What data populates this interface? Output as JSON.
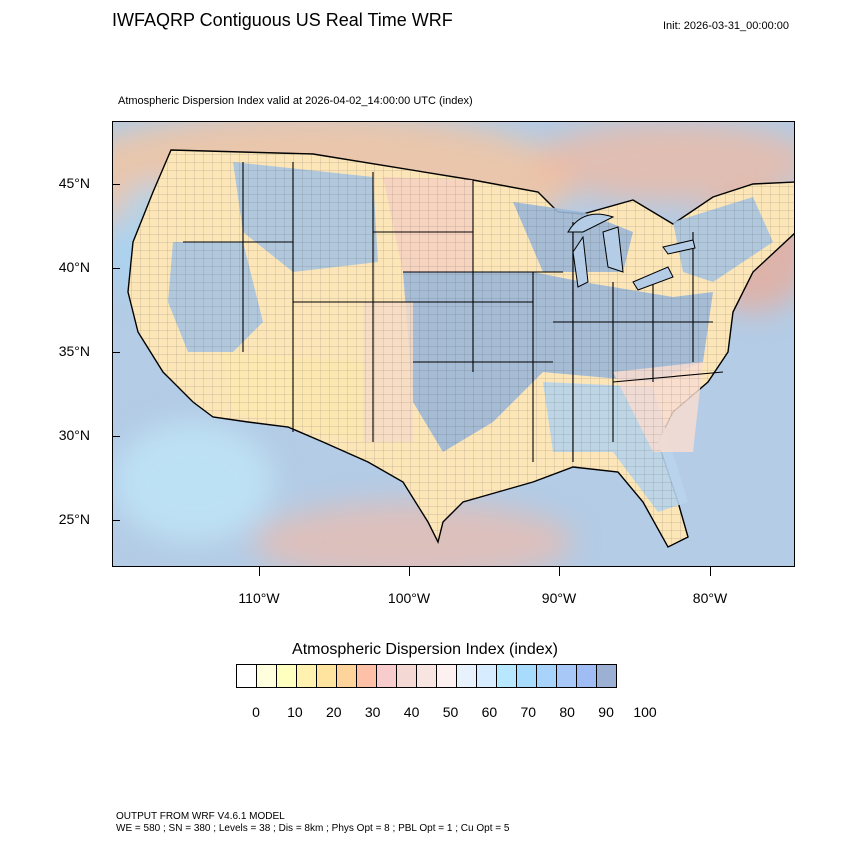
{
  "title": "IWFAQRP Contiguous US Real Time WRF",
  "init": "Init: 2026-03-31_00:00:00",
  "subtitle": "Atmospheric Dispersion Index valid at 2026-04-02_14:00:00 UTC   (index)",
  "map": {
    "lat_labels": [
      "45°N",
      "40°N",
      "35°N",
      "30°N",
      "25°N"
    ],
    "lon_labels": [
      "110°W",
      "100°W",
      "90°W",
      "80°W"
    ]
  },
  "legend": {
    "title": "Atmospheric Dispersion Index  (index)",
    "colors": [
      "#ffffff",
      "#ffffdd",
      "#ffffc0",
      "#fff2b0",
      "#ffe4a0",
      "#ffd49a",
      "#ffc0a8",
      "#f8cccc",
      "#f4d8d4",
      "#f8e4e0",
      "#fcf0f0",
      "#e8f2fc",
      "#d8ecff",
      "#b8e8ff",
      "#a8dcfc",
      "#a8d4fc",
      "#a8c8f8",
      "#a0bcf4",
      "#9cb0d4"
    ],
    "ticks": [
      "0",
      "10",
      "20",
      "30",
      "40",
      "50",
      "60",
      "70",
      "80",
      "90",
      "100"
    ]
  },
  "footer": {
    "model": "OUTPUT FROM WRF V4.6.1 MODEL",
    "options": "WE = 580 ; SN = 380 ; Levels = 38 ; Dis = 8km ; Phys Opt = 8 ; PBL Opt = 1 ; Cu Opt = 5"
  }
}
